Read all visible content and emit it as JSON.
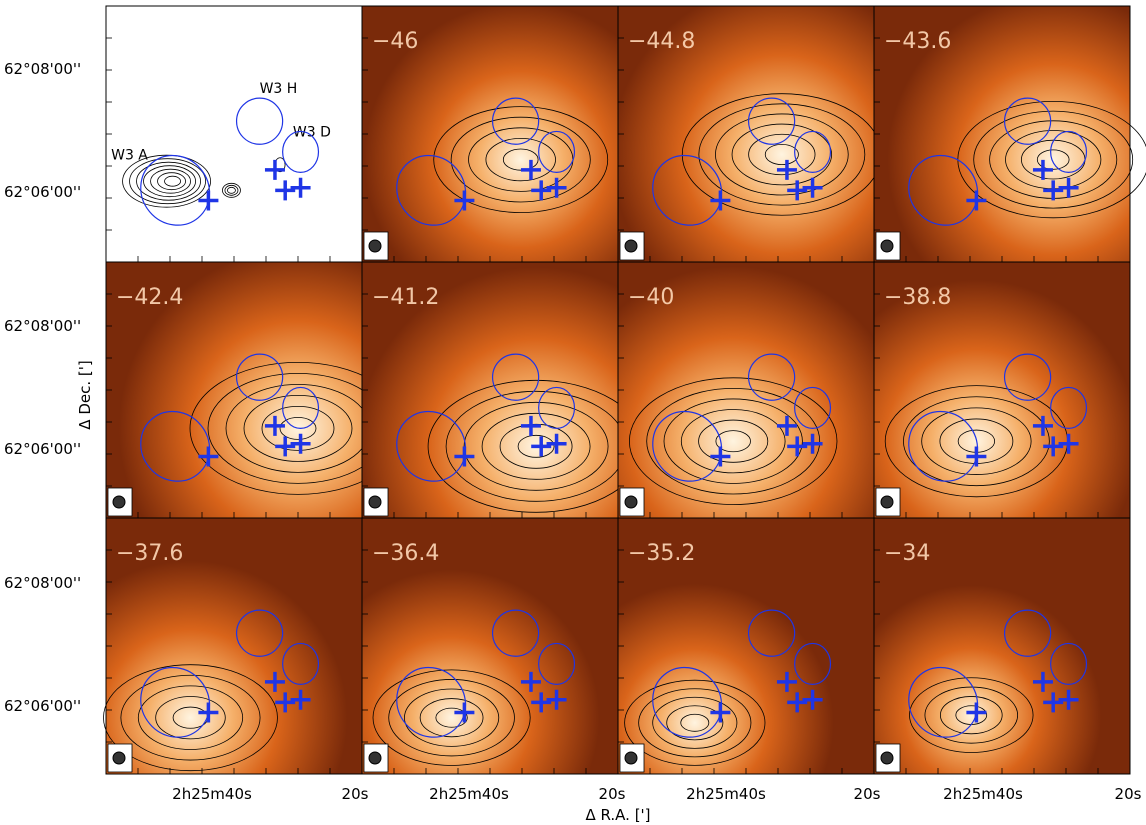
{
  "chart_data": {
    "type": "heatmap",
    "title": "",
    "xlabel": "Δ R.A. [']",
    "ylabel": "Δ Dec. [']",
    "y_ticks": [
      "62°08'00''",
      "62°06'00''"
    ],
    "x_ticks": [
      "2h25m40s",
      "20s"
    ],
    "overview_labels": [
      "W3 A",
      "W3 H",
      "W3 D"
    ],
    "panels": [
      {
        "velocity": "",
        "kind": "overview"
      },
      {
        "velocity": "−46",
        "peak": {
          "x": 0.62,
          "y": 0.6
        },
        "extent": 0.75
      },
      {
        "velocity": "−44.8",
        "peak": {
          "x": 0.64,
          "y": 0.58
        },
        "extent": 0.9
      },
      {
        "velocity": "−43.6",
        "peak": {
          "x": 0.7,
          "y": 0.6
        },
        "extent": 0.85
      },
      {
        "velocity": "−42.4",
        "peak": {
          "x": 0.75,
          "y": 0.65
        },
        "extent": 1.0
      },
      {
        "velocity": "−41.2",
        "peak": {
          "x": 0.68,
          "y": 0.72
        },
        "extent": 1.0
      },
      {
        "velocity": "−40",
        "peak": {
          "x": 0.45,
          "y": 0.7
        },
        "extent": 0.95
      },
      {
        "velocity": "−38.8",
        "peak": {
          "x": 0.4,
          "y": 0.7
        },
        "extent": 0.8
      },
      {
        "velocity": "−37.6",
        "peak": {
          "x": 0.33,
          "y": 0.78
        },
        "extent": 0.75
      },
      {
        "velocity": "−36.4",
        "peak": {
          "x": 0.35,
          "y": 0.78
        },
        "extent": 0.65
      },
      {
        "velocity": "−35.2",
        "peak": {
          "x": 0.3,
          "y": 0.8
        },
        "extent": 0.55
      },
      {
        "velocity": "−34",
        "peak": {
          "x": 0.38,
          "y": 0.77
        },
        "extent": 0.45
      }
    ],
    "markers": [
      {
        "type": "cross",
        "x": 0.4,
        "y": 0.76
      },
      {
        "type": "cross",
        "x": 0.66,
        "y": 0.64
      },
      {
        "type": "cross",
        "x": 0.7,
        "y": 0.72
      },
      {
        "type": "cross",
        "x": 0.76,
        "y": 0.71
      }
    ],
    "ellipses": [
      {
        "cx": 0.27,
        "cy": 0.72,
        "rx": 0.13,
        "ry": 0.14,
        "rot": -40
      },
      {
        "cx": 0.6,
        "cy": 0.45,
        "rx": 0.09,
        "ry": 0.09,
        "rot": 0
      },
      {
        "cx": 0.76,
        "cy": 0.57,
        "rx": 0.07,
        "ry": 0.08,
        "rot": 0
      }
    ],
    "colors": {
      "low": "#7a2a0a",
      "mid": "#d9641a",
      "high": "#fff4e0",
      "marker": "#1f35e6",
      "contour": "#000000"
    }
  }
}
